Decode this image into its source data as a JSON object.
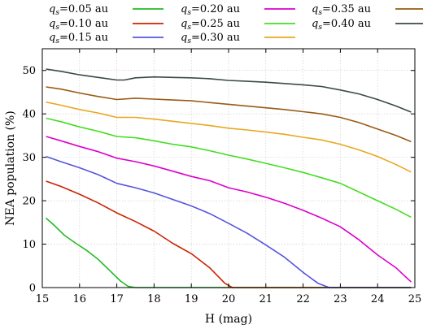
{
  "chart_data": {
    "type": "line",
    "xlabel": "H (mag)",
    "ylabel": "NEA population (%)",
    "xlim": [
      15,
      25
    ],
    "ylim": [
      0,
      55
    ],
    "xticks": [
      15,
      16,
      17,
      18,
      19,
      20,
      21,
      22,
      23,
      24,
      25
    ],
    "yticks": [
      0,
      10,
      20,
      30,
      40,
      50
    ],
    "grid": true,
    "legend_position": "top",
    "legend_symbol": "q",
    "legend_subscript": "s",
    "series": [
      {
        "name": "=0.05 au",
        "color": "#22bb22",
        "x": [
          15.1,
          15.3,
          15.6,
          15.9,
          16.2,
          16.5,
          16.8,
          17.1,
          17.3,
          17.5,
          17.7,
          18.0,
          19.0,
          20.0,
          21.0,
          22.0,
          23.0,
          24.0,
          24.9
        ],
        "y": [
          16,
          14.5,
          12,
          10.2,
          8.5,
          6.5,
          4,
          1.5,
          0.3,
          0,
          0,
          0,
          0,
          0,
          0,
          0,
          0,
          0,
          0
        ]
      },
      {
        "name": "=0.10 au",
        "color": "#cc2200",
        "x": [
          15.1,
          15.5,
          16.0,
          16.5,
          17.0,
          17.5,
          18.0,
          18.5,
          19.0,
          19.5,
          19.9,
          20.1,
          20.3,
          21.0,
          22.0,
          23.0,
          24.0,
          24.9
        ],
        "y": [
          24.5,
          23.3,
          21.5,
          19.5,
          17.2,
          15.2,
          13,
          10.2,
          7.8,
          4.5,
          1,
          0,
          0,
          0,
          0,
          0,
          0,
          0
        ]
      },
      {
        "name": "=0.15 au",
        "color": "#5555dd",
        "x": [
          15.1,
          15.5,
          16.0,
          16.5,
          17.0,
          17.5,
          18.0,
          18.5,
          19.0,
          19.5,
          20.0,
          20.5,
          21.0,
          21.5,
          22.0,
          22.4,
          22.7,
          23.0,
          24.0,
          24.9
        ],
        "y": [
          30.2,
          29,
          27.6,
          26,
          24,
          23,
          21.8,
          20.3,
          18.8,
          17,
          14.8,
          12.5,
          9.8,
          7,
          3.5,
          1,
          0,
          0,
          0,
          0
        ]
      },
      {
        "name": "=0.20 au",
        "color": "#dd00cc",
        "x": [
          15.1,
          15.5,
          16.0,
          16.5,
          17.0,
          17.5,
          18.0,
          18.5,
          19.0,
          19.5,
          20.0,
          20.5,
          21.0,
          21.5,
          22.0,
          22.5,
          23.0,
          23.5,
          24.0,
          24.5,
          24.9
        ],
        "y": [
          34.8,
          33.8,
          32.5,
          31.3,
          29.8,
          29,
          28,
          26.8,
          25.6,
          24.6,
          23,
          22,
          20.8,
          19.4,
          17.8,
          16,
          14,
          11,
          7.5,
          4.5,
          1.3
        ]
      },
      {
        "name": "=0.25 au",
        "color": "#44dd22",
        "x": [
          15.1,
          15.5,
          16.0,
          16.5,
          17.0,
          17.5,
          18.0,
          18.5,
          19.0,
          19.5,
          20.0,
          20.5,
          21.0,
          21.5,
          22.0,
          22.5,
          23.0,
          23.5,
          24.0,
          24.5,
          24.9
        ],
        "y": [
          39,
          38.2,
          37,
          36,
          34.8,
          34.5,
          33.8,
          33,
          32.4,
          31.5,
          30.5,
          29.6,
          28.6,
          27.6,
          26.5,
          25.3,
          24,
          22,
          20,
          18,
          16.2
        ]
      },
      {
        "name": "=0.30 au",
        "color": "#e8a820",
        "x": [
          15.1,
          15.5,
          16.0,
          16.5,
          17.0,
          17.5,
          18.0,
          18.5,
          19.0,
          19.5,
          20.0,
          20.5,
          21.0,
          21.5,
          22.0,
          22.5,
          23.0,
          23.5,
          24.0,
          24.5,
          24.9
        ],
        "y": [
          42.7,
          42,
          41,
          40.2,
          39.2,
          39.2,
          38.8,
          38.3,
          37.8,
          37.3,
          36.7,
          36.3,
          35.8,
          35.3,
          34.6,
          34,
          33,
          31.7,
          30.2,
          28.3,
          26.6
        ]
      },
      {
        "name": "=0.35 au",
        "color": "#9a5a14",
        "x": [
          15.1,
          15.5,
          16.0,
          16.5,
          17.0,
          17.5,
          18.0,
          18.5,
          19.0,
          19.5,
          20.0,
          20.5,
          21.0,
          21.5,
          22.0,
          22.5,
          23.0,
          23.5,
          24.0,
          24.5,
          24.9
        ],
        "y": [
          46.2,
          45.7,
          44.8,
          44,
          43.3,
          43.6,
          43.4,
          43.2,
          43,
          42.6,
          42.2,
          41.8,
          41.4,
          41,
          40.5,
          40,
          39.2,
          38,
          36.5,
          35,
          33.6
        ]
      },
      {
        "name": "=0.40 au",
        "color": "#3a4a48",
        "x": [
          15.1,
          15.5,
          16.0,
          16.5,
          17.0,
          17.2,
          17.5,
          18.0,
          18.5,
          19.0,
          19.5,
          20.0,
          20.5,
          21.0,
          21.5,
          22.0,
          22.5,
          23.0,
          23.5,
          24.0,
          24.5,
          24.9
        ],
        "y": [
          50.3,
          49.8,
          49,
          48.4,
          47.8,
          47.8,
          48.3,
          48.5,
          48.4,
          48.3,
          48.1,
          47.7,
          47.5,
          47.3,
          47,
          46.7,
          46.3,
          45.5,
          44.6,
          43.3,
          41.8,
          40.4
        ]
      }
    ]
  }
}
